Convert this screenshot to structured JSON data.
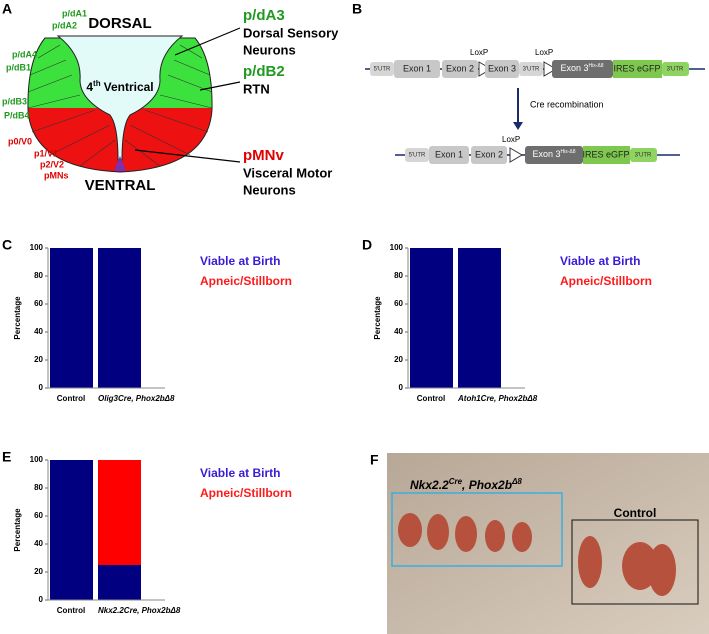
{
  "panel_a": {
    "label": "A",
    "top": "DORSAL",
    "bottom": "VENTRAL",
    "ventricle_number": "4",
    "ventricle_sup": "th",
    "ventricle_name": "Ventrical",
    "left_labels": [
      "p/dA1",
      "p/dA2",
      "p/dA4",
      "p/dB1",
      "p/dB3",
      "P/dB4",
      "p0/V0",
      "p1/V1",
      "p2/V2",
      "pMNs"
    ],
    "right_labels": [
      {
        "name": "p/dA3",
        "desc": [
          "Dorsal Sensory",
          "Neurons"
        ]
      },
      {
        "name": "p/dB2",
        "desc": [
          "RTN"
        ]
      },
      {
        "name": "pMNv",
        "desc": [
          "Visceral Motor",
          "Neurons"
        ]
      }
    ]
  },
  "panel_b": {
    "label": "B",
    "loxp": "LoxP",
    "utr5": "5'UTR",
    "exon1": "Exon 1",
    "exon2": "Exon 2",
    "exon3": "Exon 3",
    "utr3": "3'UTR",
    "exon3_mut": "Exon 3",
    "exon3_sup": "His-Δ8",
    "ires": "IRES eGFP",
    "arrow": "Cre recombination"
  },
  "panel_f": {
    "label": "F",
    "gene1": "Nkx2.2",
    "sup1": "Cre",
    "gene2": ", Phox2b",
    "sup2": "Δ8",
    "control": "Control"
  },
  "chart_data": [
    {
      "type": "stacked_bar",
      "panel": "C",
      "ylabel": "Percentage",
      "categories": [
        "Control",
        "Olig3Cre, Phox2bΔ8"
      ],
      "series": [
        {
          "name": "Viable at Birth",
          "color": "#000080",
          "label_color": "#3a1ad6",
          "values": [
            100,
            100
          ]
        },
        {
          "name": "Apneic/Stillborn",
          "color": "#ff0000",
          "label_color": "#ff1a1a",
          "values": [
            0,
            0
          ]
        }
      ],
      "ylim": [
        0,
        100
      ],
      "yticks": [
        0,
        20,
        40,
        60,
        80,
        100
      ]
    },
    {
      "type": "stacked_bar",
      "panel": "D",
      "ylabel": "Percentage",
      "categories": [
        "Control",
        "Atoh1Cre, Phox2bΔ8"
      ],
      "series": [
        {
          "name": "Viable at Birth",
          "color": "#000080",
          "label_color": "#3a1ad6",
          "values": [
            100,
            100
          ]
        },
        {
          "name": "Apneic/Stillborn",
          "color": "#ff0000",
          "label_color": "#ff1a1a",
          "values": [
            0,
            0
          ]
        }
      ],
      "ylim": [
        0,
        100
      ],
      "yticks": [
        0,
        20,
        40,
        60,
        80,
        100
      ]
    },
    {
      "type": "stacked_bar",
      "panel": "E",
      "ylabel": "Percentage",
      "categories": [
        "Control",
        "Nkx2.2Cre, Phox2bΔ8"
      ],
      "series": [
        {
          "name": "Viable at Birth",
          "color": "#000080",
          "label_color": "#3a1ad6",
          "values": [
            100,
            25
          ]
        },
        {
          "name": "Apneic/Stillborn",
          "color": "#ff0000",
          "label_color": "#ff1a1a",
          "values": [
            0,
            75
          ]
        }
      ],
      "ylim": [
        0,
        100
      ],
      "yticks": [
        0,
        20,
        40,
        60,
        80,
        100
      ]
    }
  ]
}
